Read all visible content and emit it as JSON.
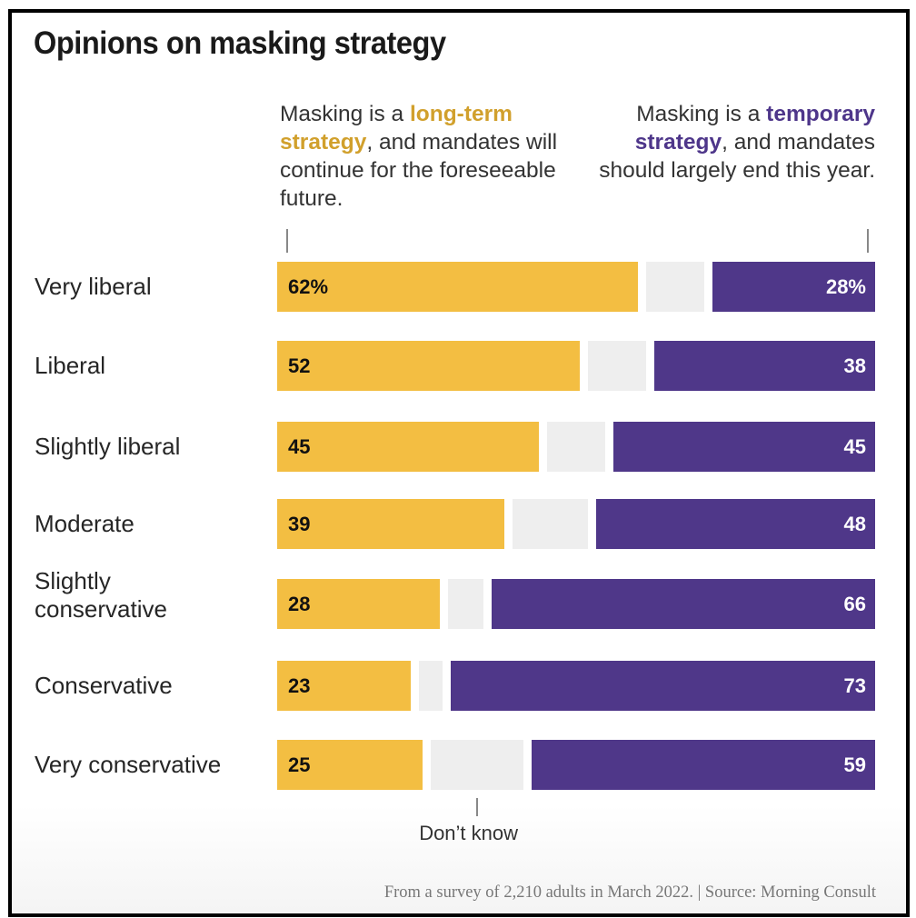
{
  "title": "Opinions on masking strategy",
  "legend": {
    "left": {
      "prefix": "Masking is a ",
      "highlight": "long-term strategy",
      "suffix": ", and mandates will continue for the foreseeable future."
    },
    "right": {
      "prefix": "Masking is a ",
      "highlight": "temporary strategy",
      "suffix": ", and mandates should largely end this year."
    },
    "dont_know": "Don’t know"
  },
  "colors": {
    "long_term": "#f3be42",
    "dont_know": "#eeeeee",
    "temporary": "#4f3789",
    "long_term_text": "#d1a02c",
    "temporary_text": "#4e368a"
  },
  "source": "From a survey of 2,210 adults in March 2022. | Source: Morning Consult",
  "chart_data": {
    "type": "bar",
    "stacked": true,
    "orientation": "horizontal",
    "title": "Opinions on masking strategy",
    "categories": [
      "Very liberal",
      "Liberal",
      "Slightly liberal",
      "Moderate",
      "Slightly conservative",
      "Conservative",
      "Very conservative"
    ],
    "series": [
      {
        "name": "Masking is a long-term strategy, and mandates will continue for the foreseeable future.",
        "values": [
          62,
          52,
          45,
          39,
          28,
          23,
          25
        ],
        "labels": [
          "62%",
          "52",
          "45",
          "39",
          "28",
          "23",
          "25"
        ]
      },
      {
        "name": "Don’t know",
        "values": [
          10,
          10,
          10,
          13,
          6,
          4,
          16
        ],
        "labels": [
          "",
          "",
          "",
          "",
          "",
          "",
          ""
        ]
      },
      {
        "name": "Masking is a temporary strategy, and mandates should largely end this year.",
        "values": [
          28,
          38,
          45,
          48,
          66,
          73,
          59
        ],
        "labels": [
          "28%",
          "38",
          "45",
          "48",
          "66",
          "73",
          "59"
        ]
      }
    ],
    "xlim": [
      0,
      100
    ],
    "unit": "%",
    "grid": false,
    "source": "From a survey of 2,210 adults in March 2022. | Source: Morning Consult"
  }
}
